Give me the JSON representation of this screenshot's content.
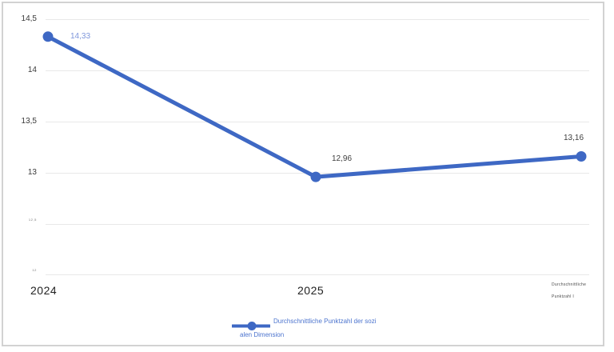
{
  "chart_data": {
    "type": "line",
    "title": "",
    "categories": [
      "2024",
      "2025",
      ""
    ],
    "series": [
      {
        "name": "Durchschnittliche Punktzahl der sozialen Dimension",
        "values": [
          14.33,
          12.96,
          13.16
        ]
      }
    ],
    "point_labels": [
      "14,33",
      "12,96",
      "13,16"
    ],
    "yticks": [
      "14,5",
      "14",
      "13,5",
      "13",
      "12,5",
      "12"
    ],
    "ylim": [
      12,
      14.5
    ],
    "grid": "horizontal",
    "legend_position": "bottom",
    "x_right_caption": {
      "line1": "Durchschnittliche",
      "line2": "Punktzahl I"
    }
  },
  "legend": {
    "marker": "line-dot",
    "label_line1": "Durchschnittliche Punktzahl der sozi",
    "label_line2": "alen Dimension"
  },
  "colors": {
    "series_line": "#3e68c4",
    "point_label_first": "#7e96db",
    "point_label_default": "#3f3f3f",
    "gridline": "#e8e8e8",
    "legend_text": "#4c74ce",
    "frame_border": "#d2d2d2"
  }
}
